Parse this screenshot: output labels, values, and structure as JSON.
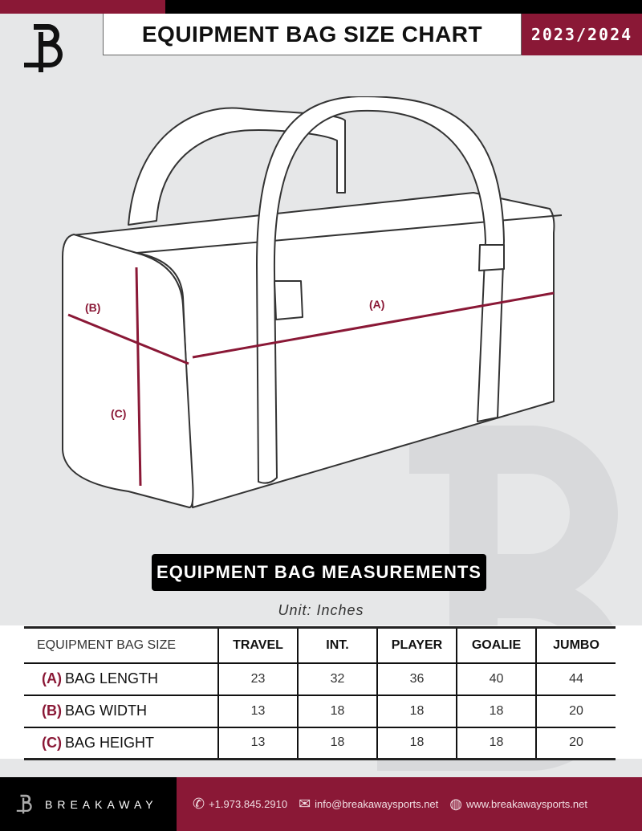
{
  "header": {
    "title": "EQUIPMENT BAG SIZE CHART",
    "season": "2023/2024",
    "logo_text": "B"
  },
  "diagram": {
    "label_a": "(A)",
    "label_b": "(B)",
    "label_c": "(C)"
  },
  "section": {
    "title": "EQUIPMENT BAG MEASUREMENTS",
    "unit": "Unit: Inches"
  },
  "table": {
    "corner": "EQUIPMENT BAG SIZE",
    "columns": [
      "TRAVEL",
      "INT.",
      "PLAYER",
      "GOALIE",
      "JUMBO"
    ],
    "rows": [
      {
        "key": "(A)",
        "label": "BAG LENGTH",
        "values": [
          "23",
          "32",
          "36",
          "40",
          "44"
        ]
      },
      {
        "key": "(B)",
        "label": "BAG WIDTH",
        "values": [
          "13",
          "18",
          "18",
          "18",
          "20"
        ]
      },
      {
        "key": "(C)",
        "label": "BAG HEIGHT",
        "values": [
          "13",
          "18",
          "18",
          "18",
          "20"
        ]
      }
    ]
  },
  "footer": {
    "brand": "BREAKAWAY",
    "phone": "+1.973.845.2910",
    "email": "info@breakawaysports.net",
    "website": "www.breakawaysports.net"
  },
  "colors": {
    "accent": "#8a1836",
    "background": "#e6e7e8"
  }
}
